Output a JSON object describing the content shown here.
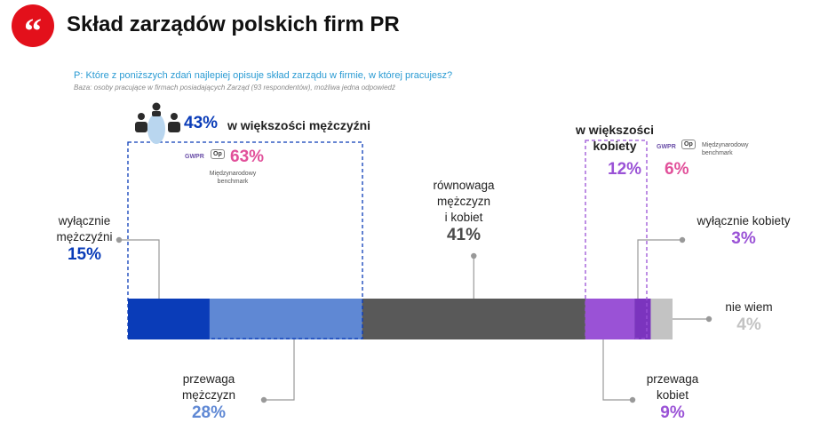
{
  "header": {
    "logo_glyph": "“",
    "title": "Skład zarządów polskich firm PR",
    "question": "P: Które z poniższych zdań najlepiej opisuje skład zarządu w firmie, w której pracujesz?",
    "base": "Baza: osoby pracujące w firmach posiadających Zarząd (93 respondentów), możliwa jedna odpowiedź"
  },
  "groups": {
    "men_majority": {
      "value": "43%",
      "label": "w większości mężczyźni",
      "benchmark_value": "63%",
      "benchmark_label": "Międzynarodowy benchmark"
    },
    "women_majority": {
      "label": "w większości kobiety",
      "value": "12%",
      "benchmark_value": "6%",
      "benchmark_label": "Międzynarodowy benchmark"
    }
  },
  "badges": {
    "gwpr": "GWPR",
    "op": "Op"
  },
  "colors": {
    "only_men": "#0a3cb8",
    "mostly_men": "#5f88d4",
    "equal": "#595959",
    "mostly_women": "#9a52d6",
    "only_women": "#7b34be",
    "dont_know": "#c3c3c3",
    "benchmark": "#e1509a",
    "connector": "#999999"
  },
  "chart_data": {
    "type": "bar",
    "orientation": "horizontal-stacked",
    "title": "Skład zarządów polskich firm PR",
    "categories": [
      "wyłącznie mężczyźni",
      "przewaga mężczyzn",
      "równowaga mężczyzn i kobiet",
      "przewaga kobiet",
      "wyłącznie kobiety",
      "nie wiem"
    ],
    "values": [
      15,
      28,
      41,
      9,
      3,
      4
    ],
    "xlim": [
      0,
      100
    ],
    "segments": [
      {
        "key": "only_men",
        "label": "wyłącznie mężczyźni",
        "value": 15,
        "display": "15%"
      },
      {
        "key": "mostly_men",
        "label": "przewaga mężczyzn",
        "value": 28,
        "display": "28%"
      },
      {
        "key": "equal",
        "label": "równowaga mężczyzn i kobiet",
        "value": 41,
        "display": "41%"
      },
      {
        "key": "mostly_women",
        "label": "przewaga kobiet",
        "value": 9,
        "display": "9%"
      },
      {
        "key": "only_women",
        "label": "wyłącznie kobiety",
        "value": 3,
        "display": "3%"
      },
      {
        "key": "dont_know",
        "label": "nie wiem",
        "value": 4,
        "display": "4%"
      }
    ],
    "label_lines": {
      "only_men": [
        "wyłącznie",
        "mężczyźni"
      ],
      "mostly_men": [
        "przewaga",
        "mężczyzn"
      ],
      "equal": [
        "równowaga",
        "mężczyzn",
        "i kobiet"
      ],
      "mostly_women": [
        "przewaga",
        "kobiet"
      ],
      "only_women": [
        "wyłącznie kobiety"
      ],
      "dont_know": [
        "nie wiem"
      ],
      "women_majority": [
        "w większości",
        "kobiety"
      ],
      "benchmark": [
        "Międzynarodowy",
        "benchmark"
      ]
    }
  }
}
